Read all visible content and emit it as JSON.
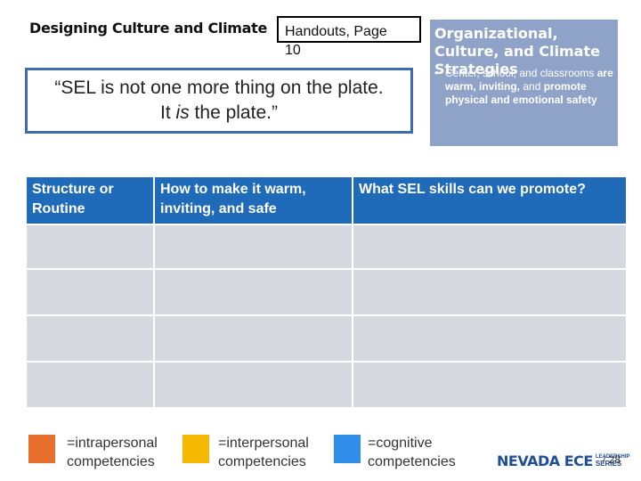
{
  "header": {
    "title": "Designing Culture and Climate",
    "handout_line1": "Handouts, Page",
    "handout_line2": "10"
  },
  "quote": {
    "line1": "“SEL is not one more thing on the plate.",
    "line2_pre": "It ",
    "line2_em": "is",
    "line2_post": " the plate.”"
  },
  "panel": {
    "heading": "Organizational, Culture, and Climate Strategies",
    "bullet": "•",
    "text_plain1": "Center, school,  and classrooms ",
    "text_bold1": "are warm, inviting,",
    "text_plain2": " and ",
    "text_bold2": "promote physical and emotional safety"
  },
  "table": {
    "headers": [
      "Structure or Routine",
      "How to make it warm, inviting, and safe",
      "What SEL skills can we promote?"
    ],
    "rows": [
      [
        "",
        "",
        ""
      ],
      [
        "",
        "",
        ""
      ],
      [
        "",
        "",
        ""
      ],
      [
        "",
        "",
        ""
      ]
    ]
  },
  "legend": [
    {
      "color": "#e8702e",
      "label": "=intrapersonal competencies"
    },
    {
      "color": "#f6b800",
      "label": "=interpersonal competencies"
    },
    {
      "color": "#2f8fe8",
      "label": "=cognitive competencies"
    }
  ],
  "footer": {
    "logo_word": "NEVADA ECE",
    "logo_small1": "LEADERSHIP",
    "logo_small2": "SERIES",
    "page": "/ 28"
  },
  "colors": {
    "header_blue": "#1f6ab9",
    "cell_gray": "#d6d9df",
    "panel_blue": "#8fa3c8",
    "quote_border": "#3f6cb0"
  }
}
